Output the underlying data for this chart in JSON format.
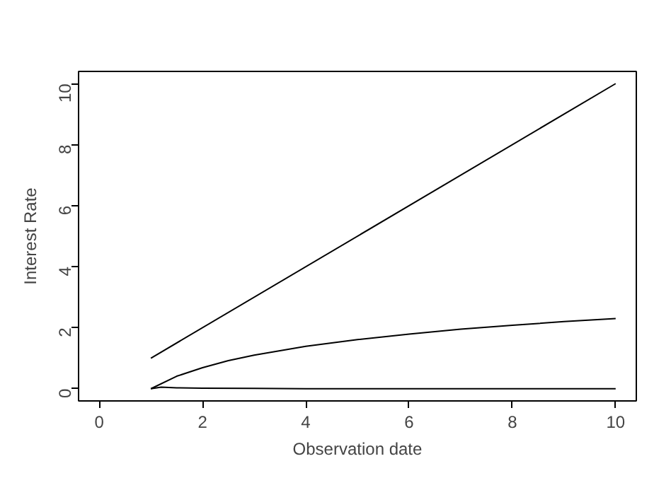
{
  "chart_data": {
    "type": "line",
    "xlabel": "Observation date",
    "ylabel": "Interest Rate",
    "xlim": [
      -0.4,
      10.4
    ],
    "ylim": [
      -0.4,
      10.4
    ],
    "xticks": [
      0,
      2,
      4,
      6,
      8,
      10
    ],
    "yticks": [
      0,
      2,
      4,
      6,
      8,
      10
    ],
    "grid": false,
    "series": [
      {
        "color": "#000000",
        "x": [
          1,
          10
        ],
        "values": [
          1,
          10
        ]
      },
      {
        "color": "#000000",
        "x": [
          1,
          1.5,
          2,
          2.5,
          3,
          4,
          5,
          6,
          7,
          8,
          9,
          10
        ],
        "values": [
          0,
          0.41,
          0.69,
          0.92,
          1.1,
          1.39,
          1.61,
          1.79,
          1.95,
          2.08,
          2.2,
          2.3
        ]
      },
      {
        "color": "#000000",
        "x": [
          1,
          1.2,
          1.5,
          2,
          3,
          4,
          6,
          8,
          10
        ],
        "values": [
          0,
          0.05,
          0.03,
          0.02,
          0.01,
          0,
          0,
          0,
          0
        ]
      }
    ]
  }
}
